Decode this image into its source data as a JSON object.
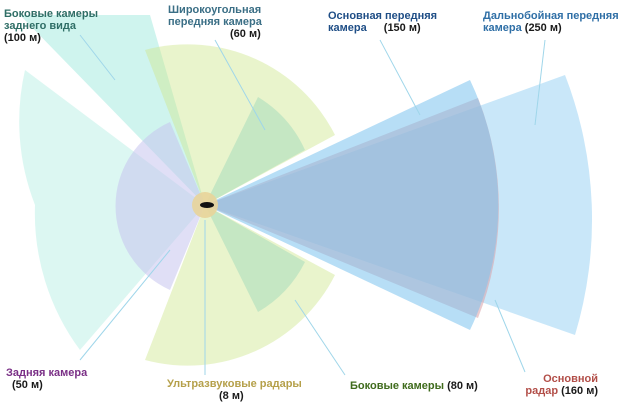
{
  "labels": {
    "side_rear": {
      "line1": "Боковые камеры",
      "line2": "заднего вида",
      "range": "(100 м)",
      "color": "#2f6e66"
    },
    "wide_front": {
      "line1": "Широкоугольная",
      "line2": "передняя камера",
      "range": "(60 м)",
      "color": "#3b6f86"
    },
    "main_front": {
      "line1": "Основная передняя",
      "line2": "камера",
      "range": "(150 м)",
      "color": "#1f4e86"
    },
    "long_front": {
      "line1": "Дальнобойная передняя",
      "line2": "камера",
      "range": "(250 м)",
      "color": "#2f6fa6"
    },
    "rear_cam": {
      "line1": "Задняя камера",
      "range": "(50 м)",
      "color": "#7a2f86"
    },
    "ultrasonic": {
      "line1": "Ультразвуковые радары",
      "range": "(8 м)",
      "color": "#b5a04a"
    },
    "side_cams": {
      "line1": "Боковые камеры",
      "range": "(80 м)",
      "color": "#3f6b1c"
    },
    "main_radar": {
      "line1": "Основной",
      "line2": "радар",
      "range": "(160 м)",
      "color": "#b24e48"
    }
  },
  "colors": {
    "side_rear_fill": "#bff0e8",
    "wide_fill": "#cfe78f",
    "main_fill": "#7cc3ee",
    "long_fill": "#9dd3f4",
    "radar_fill": "#d8a0a8",
    "rear_fill": "#c7c4ee",
    "side_fill": "#a7dcbc",
    "ultra_fill": "#e8d49a",
    "car": "#111111",
    "leader": "#9fd6ea"
  }
}
